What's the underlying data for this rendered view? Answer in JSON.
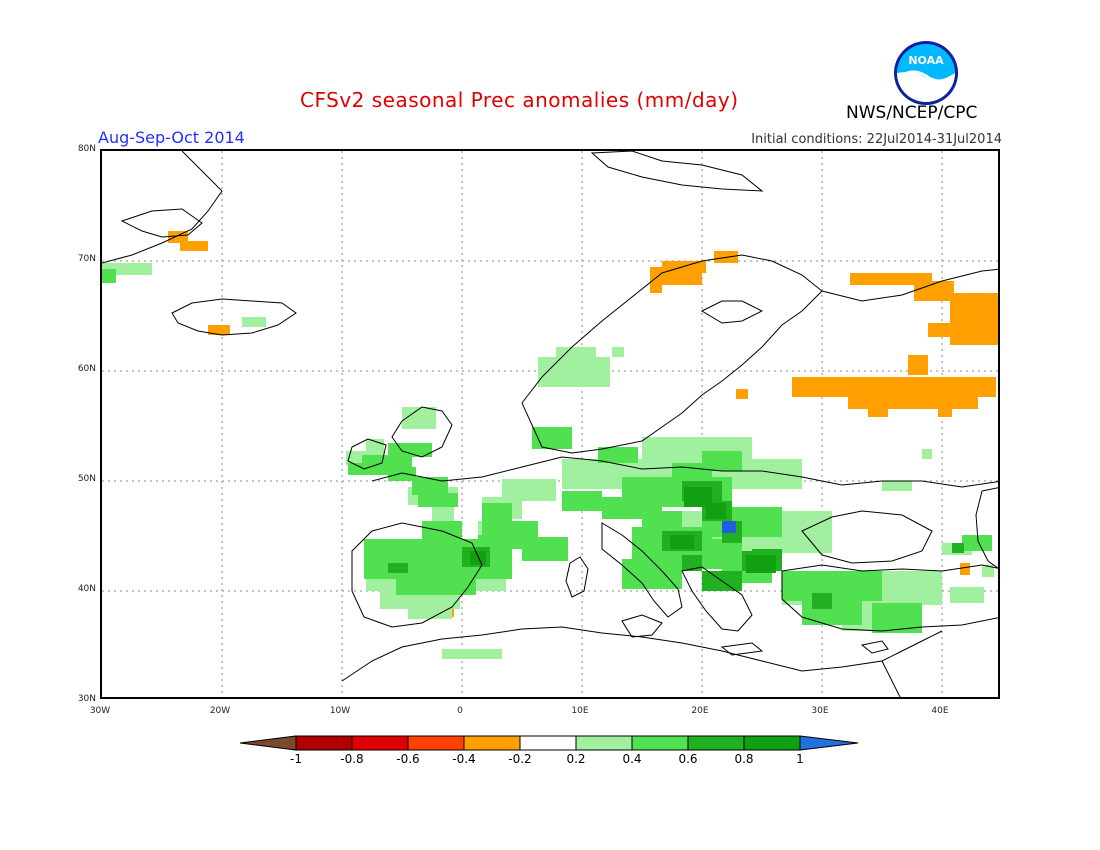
{
  "header": {
    "title": "CFSv2 seasonal Prec anomalies (mm/day)",
    "season": "Aug-Sep-Oct 2014",
    "initial_conditions": "Initial conditions: 22Jul2014-31Jul2014",
    "agency": "NWS/NCEP/CPC",
    "logo_text": "NOAA"
  },
  "map": {
    "lat_labels": [
      "80N",
      "70N",
      "60N",
      "50N",
      "40N",
      "30N"
    ],
    "lon_labels": [
      "30W",
      "20W",
      "10W",
      "0",
      "10E",
      "20E",
      "30E",
      "40E"
    ],
    "grid": "dotted",
    "colors": {
      "dry_strong": "#ff9f00",
      "wet_light": "#90ee90",
      "wet_medium": "#50e050",
      "wet_strong": "#20b020",
      "wet_very": "#10a010",
      "extreme_wet": "#2060e0"
    }
  },
  "colorbar": {
    "labels": [
      "-1",
      "-0.8",
      "-0.6",
      "-0.4",
      "-0.2",
      "0.2",
      "0.4",
      "0.6",
      "0.8",
      "1"
    ],
    "colors": [
      "#7b4a2e",
      "#b00000",
      "#e00000",
      "#ff4000",
      "#ffa000",
      "#ffffff",
      "#a0f0a0",
      "#50e050",
      "#20b020",
      "#10a010",
      "#2070e0"
    ]
  }
}
